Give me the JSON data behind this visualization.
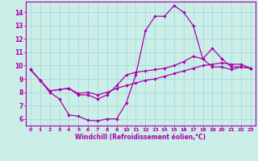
{
  "xlabel": "Windchill (Refroidissement éolien,°C)",
  "bg_color": "#cceee8",
  "grid_color": "#aadddd",
  "line_color": "#aa00aa",
  "spine_color": "#aa00aa",
  "xlim": [
    -0.5,
    23.5
  ],
  "ylim": [
    5.5,
    14.8
  ],
  "xticks": [
    0,
    1,
    2,
    3,
    4,
    5,
    6,
    7,
    8,
    9,
    10,
    11,
    12,
    13,
    14,
    15,
    16,
    17,
    18,
    19,
    20,
    21,
    22,
    23
  ],
  "yticks": [
    6,
    7,
    8,
    9,
    10,
    11,
    12,
    13,
    14
  ],
  "line1_x": [
    0,
    1,
    2,
    3,
    4,
    5,
    6,
    7,
    8,
    9,
    10,
    11,
    12,
    13,
    14,
    15,
    16,
    17,
    18,
    19,
    20,
    21,
    22,
    23
  ],
  "line1_y": [
    9.7,
    8.9,
    8.0,
    7.5,
    6.3,
    6.2,
    5.9,
    5.85,
    6.0,
    6.0,
    7.2,
    9.3,
    12.6,
    13.7,
    13.7,
    14.5,
    14.0,
    13.0,
    10.5,
    9.9,
    9.9,
    9.7,
    9.9,
    9.8
  ],
  "line2_x": [
    0,
    1,
    2,
    3,
    4,
    5,
    6,
    7,
    8,
    9,
    10,
    11,
    12,
    13,
    14,
    15,
    16,
    17,
    18,
    19,
    20,
    21,
    22,
    23
  ],
  "line2_y": [
    9.7,
    8.9,
    8.1,
    8.2,
    8.3,
    7.8,
    7.8,
    7.5,
    7.8,
    8.5,
    9.3,
    9.5,
    9.6,
    9.7,
    9.8,
    10.0,
    10.3,
    10.7,
    10.5,
    11.3,
    10.5,
    9.9,
    9.9,
    9.8
  ],
  "line3_x": [
    0,
    1,
    2,
    3,
    4,
    5,
    6,
    7,
    8,
    9,
    10,
    11,
    12,
    13,
    14,
    15,
    16,
    17,
    18,
    19,
    20,
    21,
    22,
    23
  ],
  "line3_y": [
    9.7,
    8.9,
    8.1,
    8.2,
    8.3,
    7.9,
    8.0,
    7.8,
    8.0,
    8.3,
    8.5,
    8.7,
    8.9,
    9.0,
    9.2,
    9.4,
    9.6,
    9.8,
    10.0,
    10.1,
    10.2,
    10.1,
    10.1,
    9.8
  ]
}
